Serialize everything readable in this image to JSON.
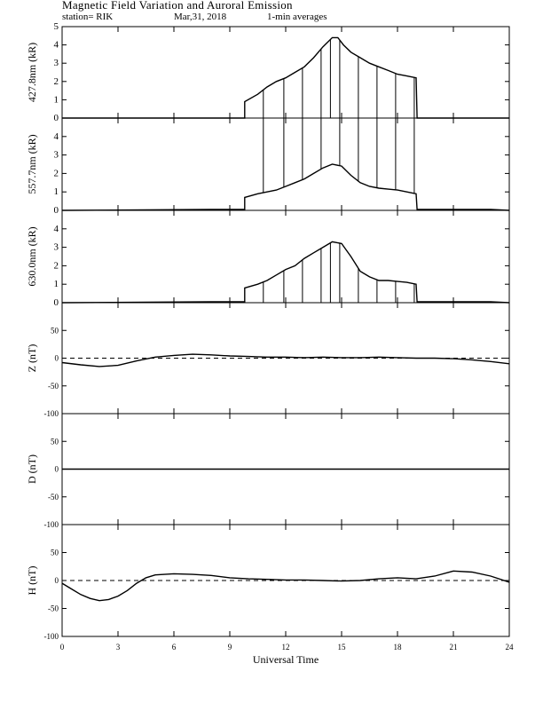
{
  "header": {
    "title": "Magnetic Field Variation and Auroral Emission",
    "station": "station= RIK",
    "date": "Mar,31, 2018",
    "averaging": "1-min averages"
  },
  "chart_data": {
    "x_axis": {
      "label": "Universal Time",
      "range": [
        0,
        24
      ],
      "ticks": [
        0,
        3,
        6,
        9,
        12,
        15,
        18,
        21,
        24
      ]
    },
    "panels": [
      {
        "id": "p4278",
        "type": "line",
        "ylabel": "427.8nm (kR)",
        "ylim": [
          0,
          5
        ],
        "yticks": [
          0,
          1,
          2,
          3,
          4,
          5
        ],
        "baseline": 0,
        "baseline_dashed": false,
        "series": [
          {
            "x": [
              0,
              8.5,
              9.8,
              9.8,
              10.5,
              11,
              11.5,
              12,
              12.5,
              13,
              13.5,
              14,
              14.5,
              14.8,
              15.1,
              15.5,
              16,
              16.5,
              17,
              17.5,
              18,
              18.5,
              19,
              19.05,
              20,
              24
            ],
            "y": [
              0,
              0,
              0,
              0.9,
              1.3,
              1.7,
              2.0,
              2.2,
              2.5,
              2.8,
              3.3,
              3.9,
              4.4,
              4.4,
              4.0,
              3.6,
              3.3,
              3.0,
              2.8,
              2.6,
              2.4,
              2.3,
              2.2,
              0,
              0,
              0
            ]
          }
        ],
        "spikes": [
          10.8,
          11.9,
          12.9,
          13.9,
          14.4,
          14.9,
          15.9,
          16.9,
          17.9,
          18.9
        ],
        "spike_to": 0
      },
      {
        "id": "p5577",
        "type": "line",
        "ylabel": "557.7nm (kR)",
        "ylim": [
          0,
          5
        ],
        "yticks": [
          0,
          1,
          2,
          3,
          4
        ],
        "baseline": 0,
        "baseline_dashed": false,
        "series": [
          {
            "x": [
              0,
              8,
              9.8,
              9.8,
              10.5,
              11,
              11.5,
              12,
              12.5,
              13,
              13.5,
              14,
              14.5,
              15,
              15.5,
              16,
              16.5,
              17,
              17.5,
              18,
              18.5,
              19,
              19.05,
              23,
              24
            ],
            "y": [
              0,
              0.05,
              0.05,
              0.7,
              0.9,
              1.0,
              1.1,
              1.3,
              1.5,
              1.7,
              2.0,
              2.3,
              2.5,
              2.4,
              1.9,
              1.5,
              1.3,
              1.2,
              1.15,
              1.1,
              1.0,
              0.9,
              0.05,
              0.05,
              0
            ]
          }
        ],
        "spikes": [
          10.8,
          11.9,
          12.9,
          13.9,
          14.9,
          15.9,
          16.9,
          17.9,
          18.9
        ],
        "spike_to": 5
      },
      {
        "id": "p6300",
        "type": "line",
        "ylabel": "630.0nm (kR)",
        "ylim": [
          0,
          5
        ],
        "yticks": [
          0,
          1,
          2,
          3,
          4
        ],
        "baseline": 0,
        "baseline_dashed": false,
        "series": [
          {
            "x": [
              0,
              8,
              9.8,
              9.8,
              10.5,
              11,
              11.5,
              12,
              12.5,
              13,
              13.5,
              14,
              14.5,
              15,
              15.5,
              16,
              16.5,
              17,
              17.5,
              18,
              18.5,
              19,
              19.05,
              23,
              24
            ],
            "y": [
              0,
              0.05,
              0.05,
              0.8,
              1.0,
              1.2,
              1.5,
              1.8,
              2.0,
              2.4,
              2.7,
              3.0,
              3.3,
              3.2,
              2.5,
              1.7,
              1.4,
              1.2,
              1.2,
              1.15,
              1.1,
              1.0,
              0.05,
              0.05,
              0
            ]
          }
        ],
        "spikes": [
          10.8,
          11.9,
          12.9,
          13.9,
          14.4,
          14.9,
          15.9,
          16.9,
          17.9,
          18.9
        ],
        "spike_to": 0
      },
      {
        "id": "pZ",
        "type": "line",
        "ylabel": "Z (nT)",
        "ylim": [
          -100,
          100
        ],
        "yticks": [
          -100,
          -50,
          0,
          50
        ],
        "baseline": 0,
        "baseline_dashed": true,
        "series": [
          {
            "x": [
              0,
              1,
              2,
              3,
              4,
              5,
              6,
              7,
              8,
              9,
              10,
              11,
              12,
              13,
              14,
              15,
              16,
              17,
              18,
              19,
              20,
              21,
              22,
              23,
              24
            ],
            "y": [
              -8,
              -12,
              -15,
              -13,
              -5,
              2,
              5,
              7,
              6,
              4,
              3,
              2,
              2,
              1,
              2,
              1,
              1,
              2,
              1,
              0,
              0,
              -1,
              -3,
              -6,
              -10
            ]
          }
        ],
        "spikes": [],
        "spike_to": 0
      },
      {
        "id": "pD",
        "type": "line",
        "ylabel": "D (nT)",
        "ylim": [
          -100,
          100
        ],
        "yticks": [
          -100,
          -50,
          0,
          50
        ],
        "baseline": 0,
        "baseline_dashed": true,
        "series": [
          {
            "x": [
              0,
              3,
              6,
              9,
              12,
              15,
              18,
              21,
              24
            ],
            "y": [
              0,
              0,
              0,
              0,
              0,
              0,
              0,
              0,
              0
            ]
          }
        ],
        "spikes": [],
        "spike_to": 0
      },
      {
        "id": "pH",
        "type": "line",
        "ylabel": "H (nT)",
        "ylim": [
          -100,
          100
        ],
        "yticks": [
          -100,
          -50,
          0,
          50
        ],
        "baseline": 0,
        "baseline_dashed": true,
        "series": [
          {
            "x": [
              0,
              0.5,
              1,
              1.5,
              2,
              2.5,
              3,
              3.5,
              4,
              4.5,
              5,
              6,
              7,
              8,
              9,
              10,
              11,
              12,
              13,
              14,
              15,
              16,
              17,
              18,
              19,
              20,
              21,
              22,
              23,
              24
            ],
            "y": [
              -5,
              -15,
              -25,
              -32,
              -36,
              -34,
              -28,
              -18,
              -5,
              5,
              10,
              12,
              11,
              9,
              5,
              3,
              2,
              1,
              1,
              0,
              -1,
              0,
              3,
              5,
              3,
              8,
              17,
              15,
              8,
              -3
            ]
          }
        ],
        "spikes": [],
        "spike_to": 0
      }
    ]
  }
}
